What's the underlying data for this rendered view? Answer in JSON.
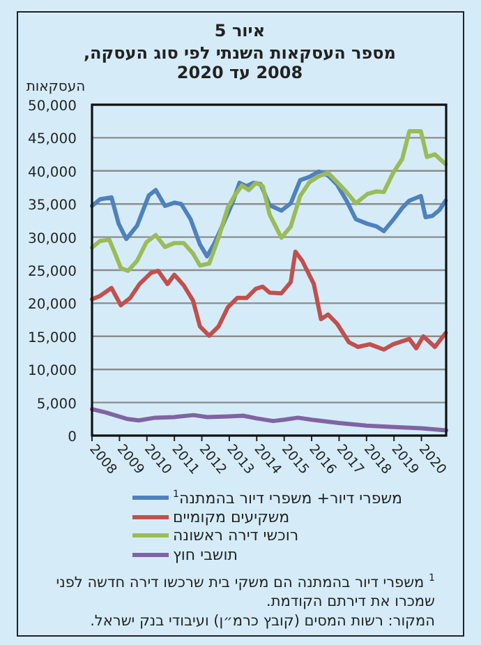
{
  "chart_data": {
    "type": "line",
    "title": "איור 5",
    "subtitle": "מספר העסקאות השנתי לפי סוג העסקה, 2008 עד 2020",
    "ylabel": "העסקאות",
    "xlim": [
      2008,
      2020.9
    ],
    "xticks": [
      2008,
      2009,
      2010,
      2011,
      2012,
      2013,
      2014,
      2015,
      2016,
      2017,
      2018,
      2019,
      2020
    ],
    "ylim": [
      0,
      50000
    ],
    "yticks": [
      0,
      {
        "value": 5000,
        "label": "5,000"
      },
      {
        "value": 10000,
        "label": "10,000"
      },
      {
        "value": 15000,
        "label": "15,000"
      },
      {
        "value": 20000,
        "label": "20,000"
      },
      {
        "value": 25000,
        "label": "25,000"
      },
      {
        "value": 30000,
        "label": "30,000"
      },
      {
        "value": 35000,
        "label": "35,000"
      },
      {
        "value": 40000,
        "label": "40,000"
      },
      {
        "value": 45000,
        "label": "45,000"
      },
      {
        "value": 50000,
        "label": "50,000"
      }
    ],
    "grid": "y",
    "legend": "bottom",
    "marker": "none",
    "line_style": "solid",
    "series": [
      {
        "name": "משפרי דיור+ משפרי דיור בהמתנה$^{1}$",
        "color": "#4f81bd",
        "x": [
          2008.0,
          2008.29,
          2008.71,
          2008.97,
          2009.25,
          2009.64,
          2010.07,
          2010.32,
          2010.66,
          2011.0,
          2011.25,
          2011.59,
          2011.93,
          2012.19,
          2012.44,
          2012.78,
          2013.12,
          2013.37,
          2013.63,
          2013.88,
          2014.14,
          2014.47,
          2014.9,
          2015.24,
          2015.58,
          2015.92,
          2016.26,
          2016.6,
          2016.93,
          2017.27,
          2017.61,
          2018.03,
          2018.37,
          2018.63,
          2018.97,
          2019.3,
          2019.56,
          2019.98,
          2020.15,
          2020.4,
          2020.66,
          2020.88
        ],
        "values": [
          34700,
          35700,
          36000,
          32000,
          29700,
          31700,
          36300,
          37100,
          34700,
          35200,
          35000,
          32700,
          28900,
          27100,
          28900,
          32000,
          35200,
          38200,
          37700,
          38200,
          38000,
          34800,
          34000,
          35100,
          38600,
          39100,
          39900,
          39300,
          37900,
          35500,
          32700,
          32000,
          31600,
          30900,
          32600,
          34400,
          35500,
          36200,
          33000,
          33200,
          34100,
          35500
        ]
      },
      {
        "name": "משקיעים מקומיים",
        "color": "#c0504d",
        "x": [
          2008.0,
          2008.29,
          2008.71,
          2009.05,
          2009.39,
          2009.73,
          2010.15,
          2010.41,
          2010.75,
          2011.0,
          2011.34,
          2011.68,
          2011.93,
          2012.27,
          2012.61,
          2012.95,
          2013.29,
          2013.63,
          2013.97,
          2014.22,
          2014.47,
          2014.9,
          2015.24,
          2015.41,
          2015.66,
          2016.08,
          2016.34,
          2016.6,
          2016.93,
          2017.36,
          2017.69,
          2018.12,
          2018.63,
          2018.97,
          2019.56,
          2019.81,
          2020.07,
          2020.49,
          2020.88
        ],
        "values": [
          20600,
          21100,
          22300,
          19700,
          20800,
          22900,
          24600,
          24900,
          22900,
          24300,
          22700,
          20400,
          16500,
          15100,
          16500,
          19400,
          20800,
          20800,
          22200,
          22500,
          21600,
          21500,
          23200,
          27800,
          26400,
          22900,
          17600,
          18300,
          16900,
          14100,
          13400,
          13800,
          13000,
          13800,
          14600,
          13200,
          15000,
          13400,
          15500
        ]
      },
      {
        "name": "רוכשי דירה ראשונה",
        "color": "#9bbb59",
        "x": [
          2008.0,
          2008.29,
          2008.63,
          2008.88,
          2009.05,
          2009.31,
          2009.64,
          2009.98,
          2010.32,
          2010.66,
          2011.0,
          2011.34,
          2011.68,
          2011.93,
          2012.27,
          2012.61,
          2012.95,
          2013.2,
          2013.46,
          2013.71,
          2013.97,
          2014.22,
          2014.47,
          2014.9,
          2015.24,
          2015.58,
          2015.92,
          2016.26,
          2016.6,
          2016.93,
          2017.27,
          2017.61,
          2018.03,
          2018.37,
          2018.63,
          2018.97,
          2019.3,
          2019.56,
          2019.98,
          2020.2,
          2020.49,
          2020.88
        ],
        "values": [
          28400,
          29400,
          29600,
          27100,
          25300,
          24900,
          26400,
          29200,
          30300,
          28500,
          29100,
          29100,
          27500,
          25700,
          26000,
          29900,
          34500,
          36300,
          37800,
          37100,
          38200,
          37700,
          33400,
          29900,
          31600,
          36200,
          38300,
          39200,
          39700,
          38300,
          36800,
          35100,
          36500,
          36900,
          36800,
          39700,
          41800,
          46000,
          46000,
          42100,
          42500,
          41000
        ]
      },
      {
        "name": "תושבי חוץ",
        "color": "#8064a2",
        "x": [
          2008.0,
          2008.5,
          2009.3,
          2009.7,
          2010.3,
          2011.0,
          2011.7,
          2012.2,
          2013.0,
          2013.5,
          2014.0,
          2014.6,
          2015.0,
          2015.5,
          2016.0,
          2017.0,
          2018.0,
          2019.0,
          2020.0,
          2020.9
        ],
        "values": [
          4000,
          3500,
          2500,
          2300,
          2700,
          2800,
          3100,
          2800,
          2900,
          3000,
          2600,
          2200,
          2400,
          2700,
          2400,
          1900,
          1500,
          1300,
          1100,
          800
        ]
      }
    ],
    "annotations": [
      "$^{1}$ משפרי דיור בהמתנה הם משקי בית שרכשו דירה חדשה לפני שמכרו את דירתם הקודמת.",
      "המקור: רשות המסים (קובץ כרמ״ן) ועיבודי בנק ישראל."
    ]
  }
}
